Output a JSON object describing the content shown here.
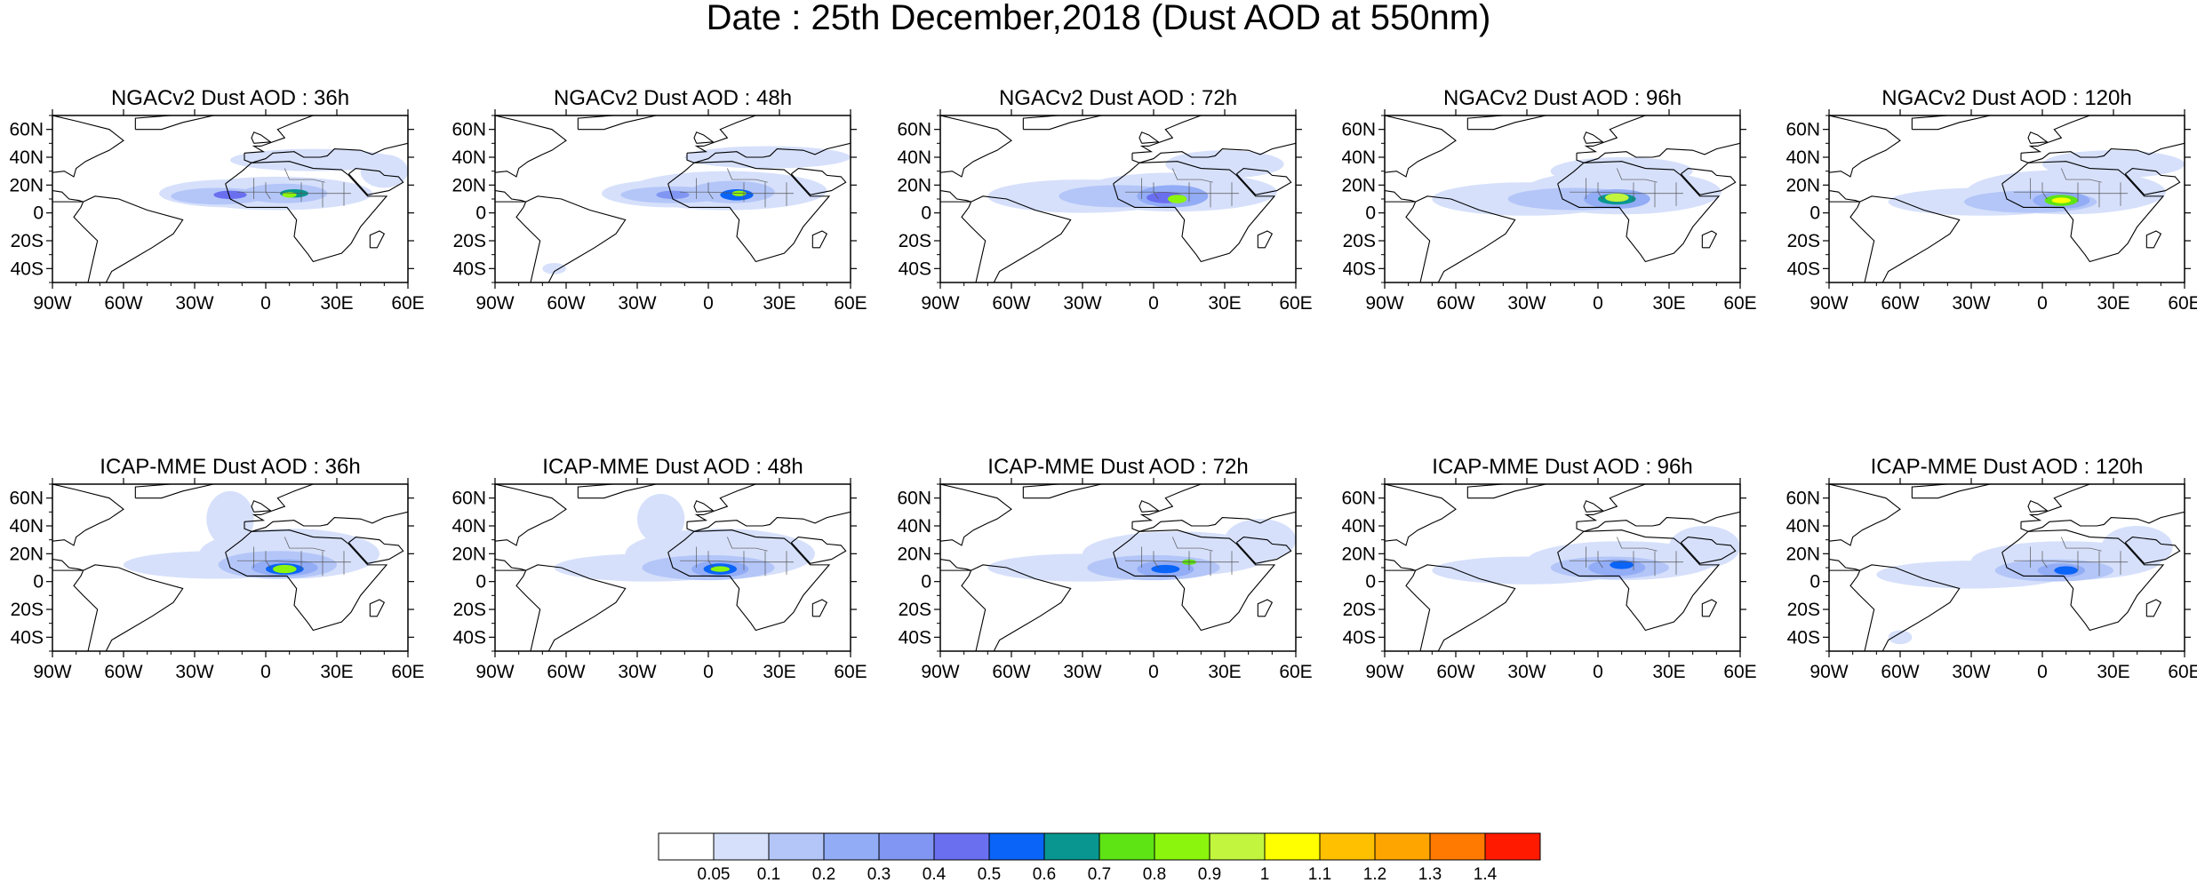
{
  "title": "Date : 25th December,2018 (Dust AOD at 550nm)",
  "panels": [
    {
      "label": "NGACv2 Dust AOD : 36h",
      "blobs": [
        {
          "cx": -15,
          "cy": 14,
          "rx": 30,
          "ry": 10,
          "level": 1
        },
        {
          "cx": 5,
          "cy": 14,
          "rx": 40,
          "ry": 12,
          "level": 1
        },
        {
          "cx": 20,
          "cy": 38,
          "rx": 35,
          "ry": 8,
          "level": 1
        },
        {
          "cx": 50,
          "cy": 30,
          "rx": 10,
          "ry": 12,
          "level": 1
        },
        {
          "cx": -20,
          "cy": 12,
          "rx": 20,
          "ry": 6,
          "level": 2
        },
        {
          "cx": 8,
          "cy": 14,
          "rx": 18,
          "ry": 7,
          "level": 2
        },
        {
          "cx": -15,
          "cy": 13,
          "rx": 7,
          "ry": 3,
          "level": 5
        },
        {
          "cx": 12,
          "cy": 14,
          "rx": 6,
          "ry": 3,
          "level": 7
        },
        {
          "cx": 10,
          "cy": 13,
          "rx": 3,
          "ry": 2,
          "level": 9
        }
      ]
    },
    {
      "label": "NGACv2 Dust AOD : 48h",
      "blobs": [
        {
          "cx": -15,
          "cy": 14,
          "rx": 30,
          "ry": 10,
          "level": 1
        },
        {
          "cx": 8,
          "cy": 16,
          "rx": 42,
          "ry": 14,
          "level": 1
        },
        {
          "cx": 25,
          "cy": 40,
          "rx": 35,
          "ry": 8,
          "level": 1
        },
        {
          "cx": -65,
          "cy": -40,
          "rx": 5,
          "ry": 4,
          "level": 1
        },
        {
          "cx": -15,
          "cy": 13,
          "rx": 22,
          "ry": 6,
          "level": 2
        },
        {
          "cx": 10,
          "cy": 15,
          "rx": 18,
          "ry": 8,
          "level": 2
        },
        {
          "cx": -15,
          "cy": 13,
          "rx": 7,
          "ry": 3,
          "level": 4
        },
        {
          "cx": 12,
          "cy": 13,
          "rx": 7,
          "ry": 4,
          "level": 6
        },
        {
          "cx": 13,
          "cy": 14,
          "rx": 3,
          "ry": 2,
          "level": 9
        }
      ]
    },
    {
      "label": "NGACv2 Dust AOD : 72h",
      "blobs": [
        {
          "cx": -30,
          "cy": 12,
          "rx": 40,
          "ry": 12,
          "level": 1
        },
        {
          "cx": 10,
          "cy": 15,
          "rx": 42,
          "ry": 14,
          "level": 1
        },
        {
          "cx": 30,
          "cy": 35,
          "rx": 25,
          "ry": 10,
          "level": 1
        },
        {
          "cx": -15,
          "cy": 12,
          "rx": 25,
          "ry": 8,
          "level": 2
        },
        {
          "cx": 8,
          "cy": 12,
          "rx": 15,
          "ry": 8,
          "level": 3
        },
        {
          "cx": 5,
          "cy": 11,
          "rx": 8,
          "ry": 4,
          "level": 5
        },
        {
          "cx": 10,
          "cy": 10,
          "rx": 4,
          "ry": 3,
          "level": 9
        }
      ]
    },
    {
      "label": "NGACv2 Dust AOD : 96h",
      "blobs": [
        {
          "cx": -30,
          "cy": 10,
          "rx": 40,
          "ry": 12,
          "level": 1
        },
        {
          "cx": 10,
          "cy": 15,
          "rx": 42,
          "ry": 16,
          "level": 1
        },
        {
          "cx": 10,
          "cy": 30,
          "rx": 30,
          "ry": 10,
          "level": 1
        },
        {
          "cx": -10,
          "cy": 10,
          "rx": 28,
          "ry": 8,
          "level": 2
        },
        {
          "cx": 8,
          "cy": 10,
          "rx": 14,
          "ry": 7,
          "level": 3
        },
        {
          "cx": 8,
          "cy": 10,
          "rx": 8,
          "ry": 4,
          "level": 7
        },
        {
          "cx": 8,
          "cy": 11,
          "rx": 5,
          "ry": 3,
          "level": 10
        }
      ]
    },
    {
      "label": "NGACv2 Dust AOD : 120h",
      "blobs": [
        {
          "cx": -25,
          "cy": 8,
          "rx": 40,
          "ry": 10,
          "level": 1
        },
        {
          "cx": 10,
          "cy": 15,
          "rx": 42,
          "ry": 16,
          "level": 1
        },
        {
          "cx": 30,
          "cy": 35,
          "rx": 30,
          "ry": 10,
          "level": 1
        },
        {
          "cx": -5,
          "cy": 8,
          "rx": 28,
          "ry": 8,
          "level": 2
        },
        {
          "cx": 8,
          "cy": 9,
          "rx": 12,
          "ry": 6,
          "level": 3
        },
        {
          "cx": 8,
          "cy": 9,
          "rx": 7,
          "ry": 4,
          "level": 8
        },
        {
          "cx": 8,
          "cy": 9,
          "rx": 4,
          "ry": 2,
          "level": 11
        }
      ]
    },
    {
      "label": "ICAP-MME Dust AOD : 36h",
      "blobs": [
        {
          "cx": -20,
          "cy": 12,
          "rx": 40,
          "ry": 10,
          "level": 1
        },
        {
          "cx": 10,
          "cy": 20,
          "rx": 38,
          "ry": 18,
          "level": 1
        },
        {
          "cx": -15,
          "cy": 45,
          "rx": 10,
          "ry": 20,
          "level": 1
        },
        {
          "cx": 5,
          "cy": 12,
          "rx": 25,
          "ry": 10,
          "level": 2
        },
        {
          "cx": 8,
          "cy": 10,
          "rx": 14,
          "ry": 6,
          "level": 3
        },
        {
          "cx": 8,
          "cy": 9,
          "rx": 8,
          "ry": 4,
          "level": 6
        },
        {
          "cx": 8,
          "cy": 9,
          "rx": 5,
          "ry": 3,
          "level": 9
        }
      ]
    },
    {
      "label": "ICAP-MME Dust AOD : 48h",
      "blobs": [
        {
          "cx": -25,
          "cy": 10,
          "rx": 40,
          "ry": 10,
          "level": 1
        },
        {
          "cx": 5,
          "cy": 20,
          "rx": 40,
          "ry": 18,
          "level": 1
        },
        {
          "cx": -20,
          "cy": 45,
          "rx": 10,
          "ry": 18,
          "level": 1
        },
        {
          "cx": 0,
          "cy": 10,
          "rx": 28,
          "ry": 9,
          "level": 2
        },
        {
          "cx": 5,
          "cy": 9,
          "rx": 12,
          "ry": 6,
          "level": 3
        },
        {
          "cx": 5,
          "cy": 9,
          "rx": 7,
          "ry": 4,
          "level": 6
        },
        {
          "cx": 5,
          "cy": 9,
          "rx": 4,
          "ry": 2,
          "level": 9
        }
      ]
    },
    {
      "label": "ICAP-MME Dust AOD : 72h",
      "blobs": [
        {
          "cx": -30,
          "cy": 10,
          "rx": 40,
          "ry": 10,
          "level": 1
        },
        {
          "cx": 10,
          "cy": 20,
          "rx": 40,
          "ry": 16,
          "level": 1
        },
        {
          "cx": 45,
          "cy": 30,
          "rx": 15,
          "ry": 15,
          "level": 1
        },
        {
          "cx": 0,
          "cy": 10,
          "rx": 28,
          "ry": 9,
          "level": 2
        },
        {
          "cx": 5,
          "cy": 9,
          "rx": 12,
          "ry": 6,
          "level": 3
        },
        {
          "cx": 5,
          "cy": 9,
          "rx": 6,
          "ry": 3,
          "level": 6
        },
        {
          "cx": 15,
          "cy": 14,
          "rx": 3,
          "ry": 2,
          "level": 8
        }
      ]
    },
    {
      "label": "ICAP-MME Dust AOD : 96h",
      "blobs": [
        {
          "cx": -30,
          "cy": 8,
          "rx": 40,
          "ry": 10,
          "level": 1
        },
        {
          "cx": 10,
          "cy": 15,
          "rx": 40,
          "ry": 14,
          "level": 1
        },
        {
          "cx": 45,
          "cy": 25,
          "rx": 15,
          "ry": 15,
          "level": 1
        },
        {
          "cx": 5,
          "cy": 10,
          "rx": 25,
          "ry": 8,
          "level": 2
        },
        {
          "cx": 8,
          "cy": 10,
          "rx": 12,
          "ry": 6,
          "level": 3
        },
        {
          "cx": 10,
          "cy": 12,
          "rx": 5,
          "ry": 3,
          "level": 6
        }
      ]
    },
    {
      "label": "ICAP-MME Dust AOD : 120h",
      "blobs": [
        {
          "cx": -30,
          "cy": 5,
          "rx": 40,
          "ry": 10,
          "level": 1
        },
        {
          "cx": 10,
          "cy": 15,
          "rx": 40,
          "ry": 14,
          "level": 1
        },
        {
          "cx": 40,
          "cy": 25,
          "rx": 15,
          "ry": 15,
          "level": 1
        },
        {
          "cx": -60,
          "cy": -40,
          "rx": 5,
          "ry": 5,
          "level": 1
        },
        {
          "cx": 5,
          "cy": 8,
          "rx": 25,
          "ry": 8,
          "level": 2
        },
        {
          "cx": 8,
          "cy": 8,
          "rx": 10,
          "ry": 5,
          "level": 3
        },
        {
          "cx": 10,
          "cy": 8,
          "rx": 5,
          "ry": 3,
          "level": 6
        }
      ]
    }
  ],
  "axes": {
    "lon_ticks": [
      "90W",
      "60W",
      "30W",
      "0",
      "30E",
      "60E"
    ],
    "lon_values": [
      -90,
      -60,
      -30,
      0,
      30,
      60
    ],
    "lat_ticks": [
      "60N",
      "40N",
      "20N",
      "0",
      "20S",
      "40S"
    ],
    "lat_values": [
      60,
      40,
      20,
      0,
      -20,
      -40
    ],
    "lon_range": [
      -90,
      60
    ],
    "lat_range": [
      -50,
      70
    ]
  },
  "colorbar": {
    "labels": [
      "0.05",
      "0.1",
      "0.2",
      "0.3",
      "0.4",
      "0.5",
      "0.6",
      "0.7",
      "0.8",
      "0.9",
      "1",
      "1.1",
      "1.2",
      "1.3",
      "1.4"
    ],
    "colors": [
      "#ffffff",
      "#d6e0fb",
      "#b4c6f8",
      "#92acf6",
      "#8196f2",
      "#6a6ff0",
      "#0a64f7",
      "#099690",
      "#5ee315",
      "#8cf50e",
      "#c2f53e",
      "#ffff00",
      "#ffc000",
      "#ffa500",
      "#ff7a00",
      "#ff1a00"
    ]
  }
}
